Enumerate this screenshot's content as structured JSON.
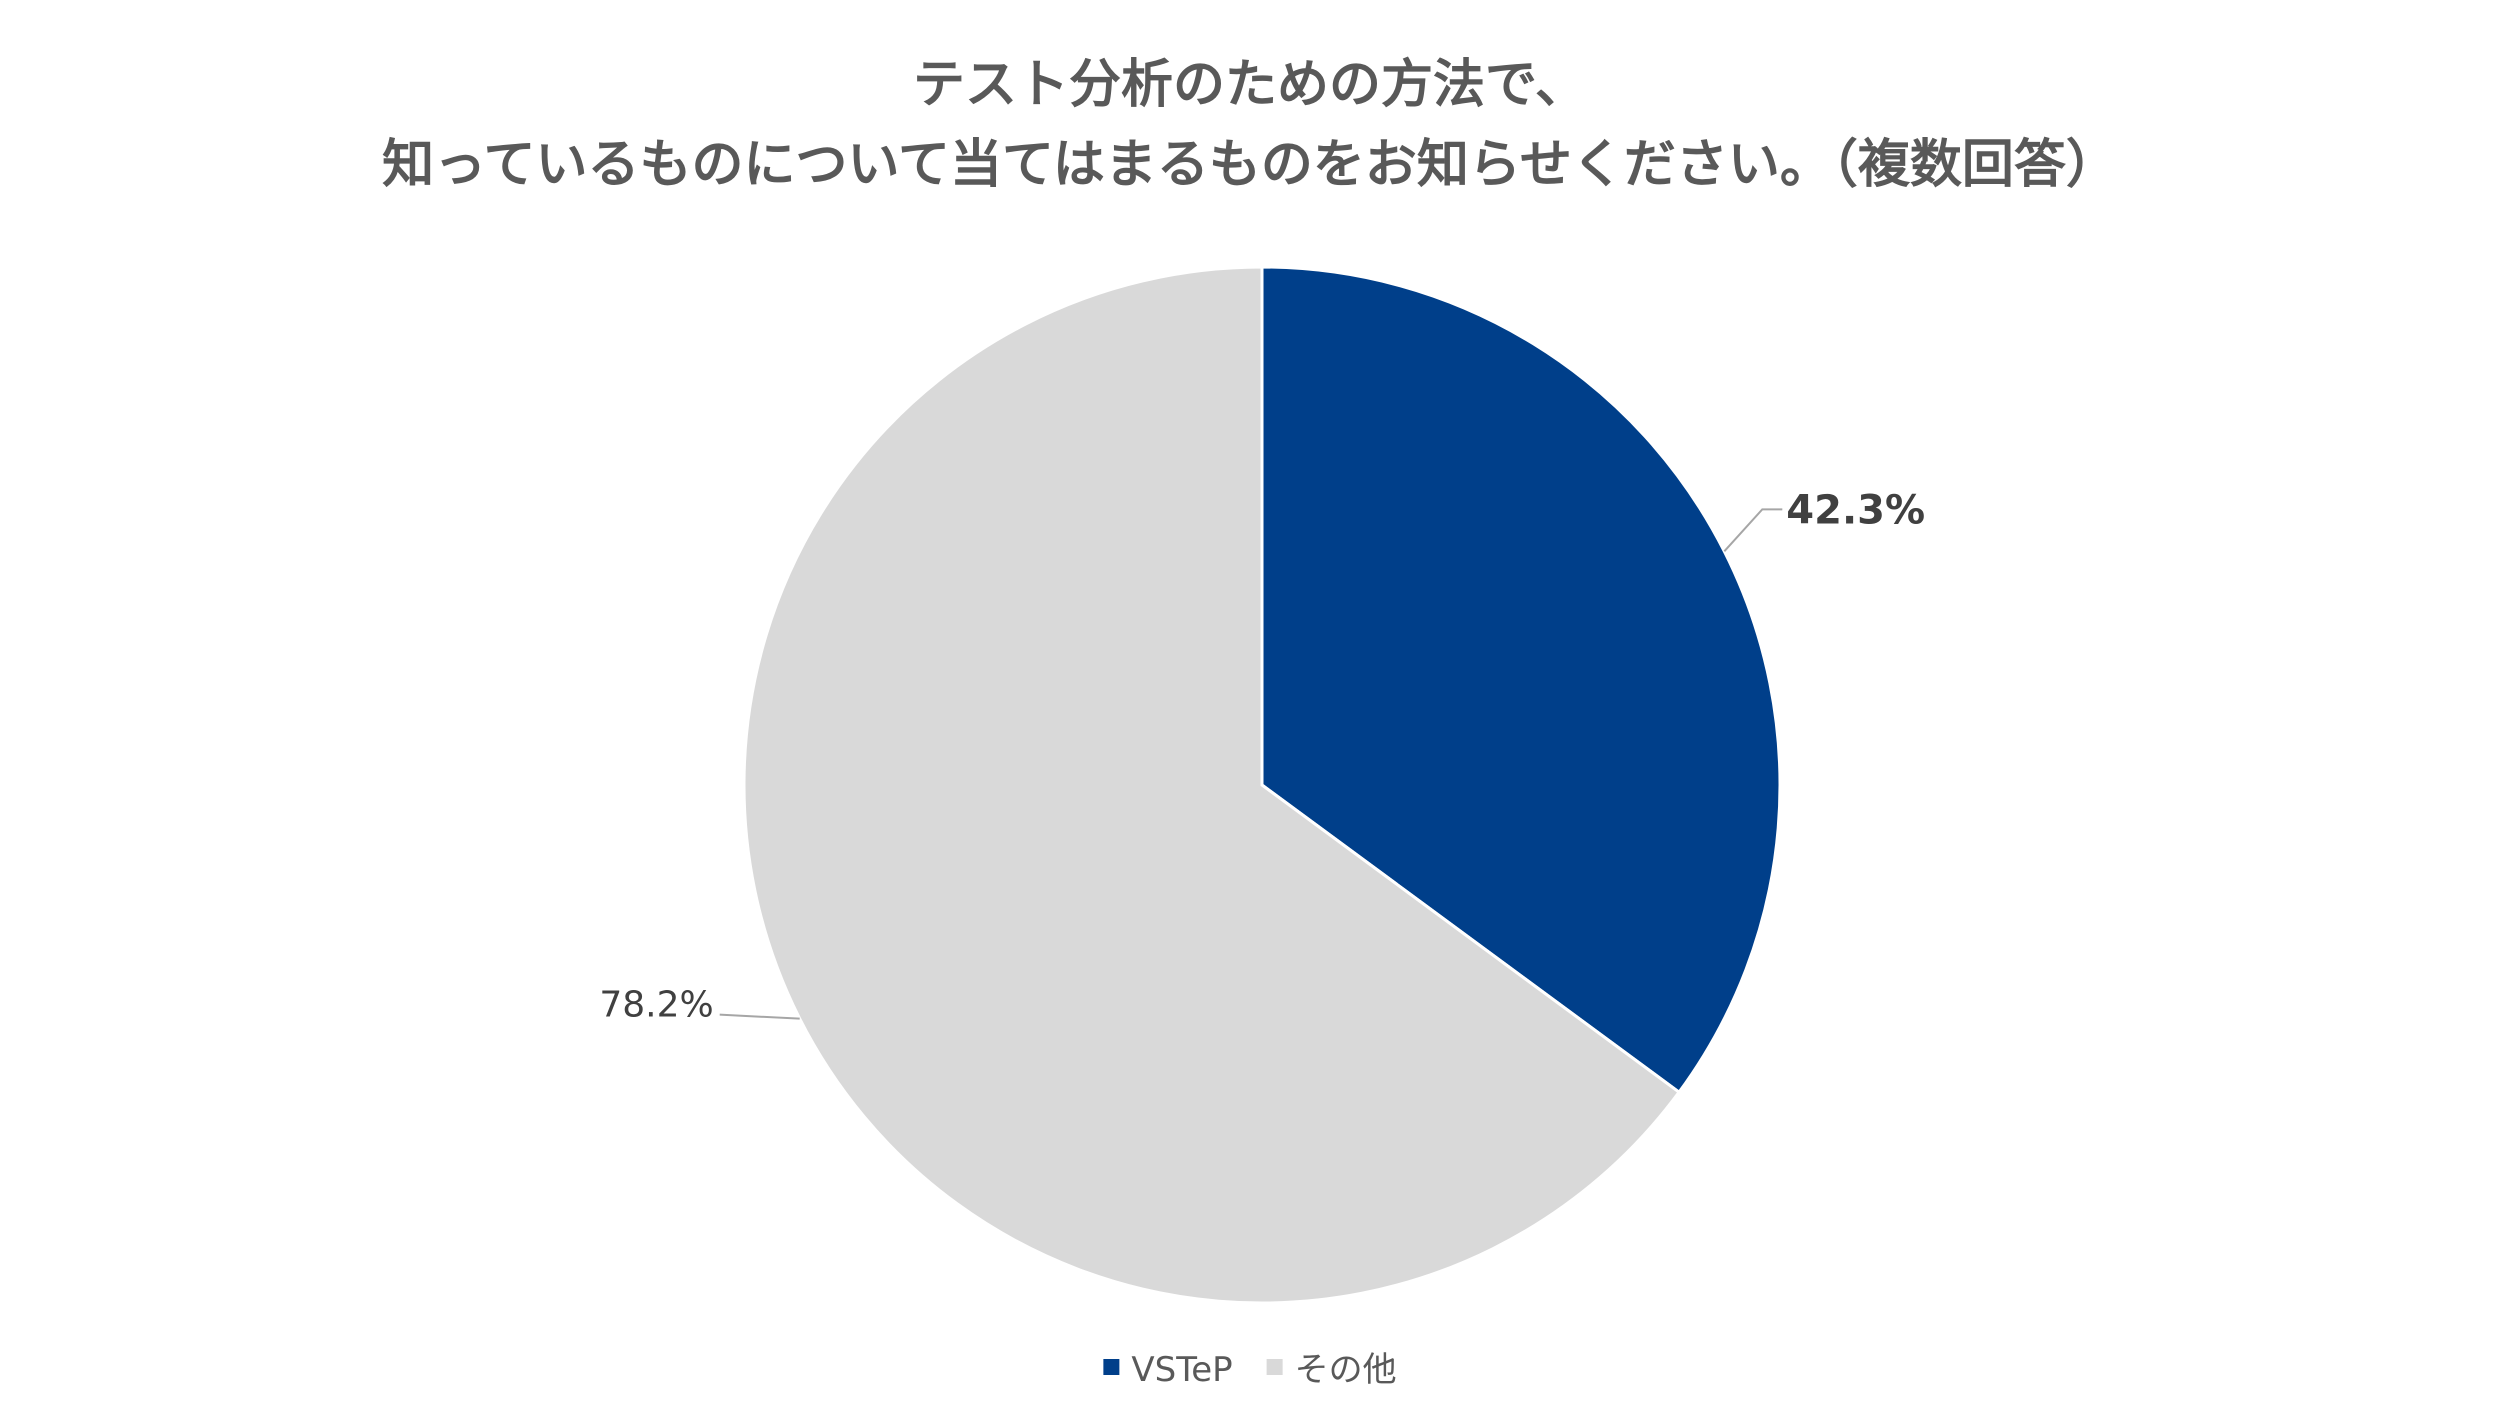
{
  "chart_data": {
    "type": "pie",
    "title_lines": [
      "テスト分析のための方法で、",
      "知っているものについて当てはまるものをお知らせください。（複数回答）"
    ],
    "slices": [
      {
        "label": "VSTeP",
        "value": 42.3,
        "data_label": "42.3%",
        "color": "#003F8A"
      },
      {
        "label": "その他",
        "value": 78.2,
        "data_label": "78.2%",
        "color": "#D9D9D9"
      }
    ],
    "legend": {
      "position": "bottom",
      "items": [
        "VSTeP",
        "その他"
      ]
    }
  }
}
